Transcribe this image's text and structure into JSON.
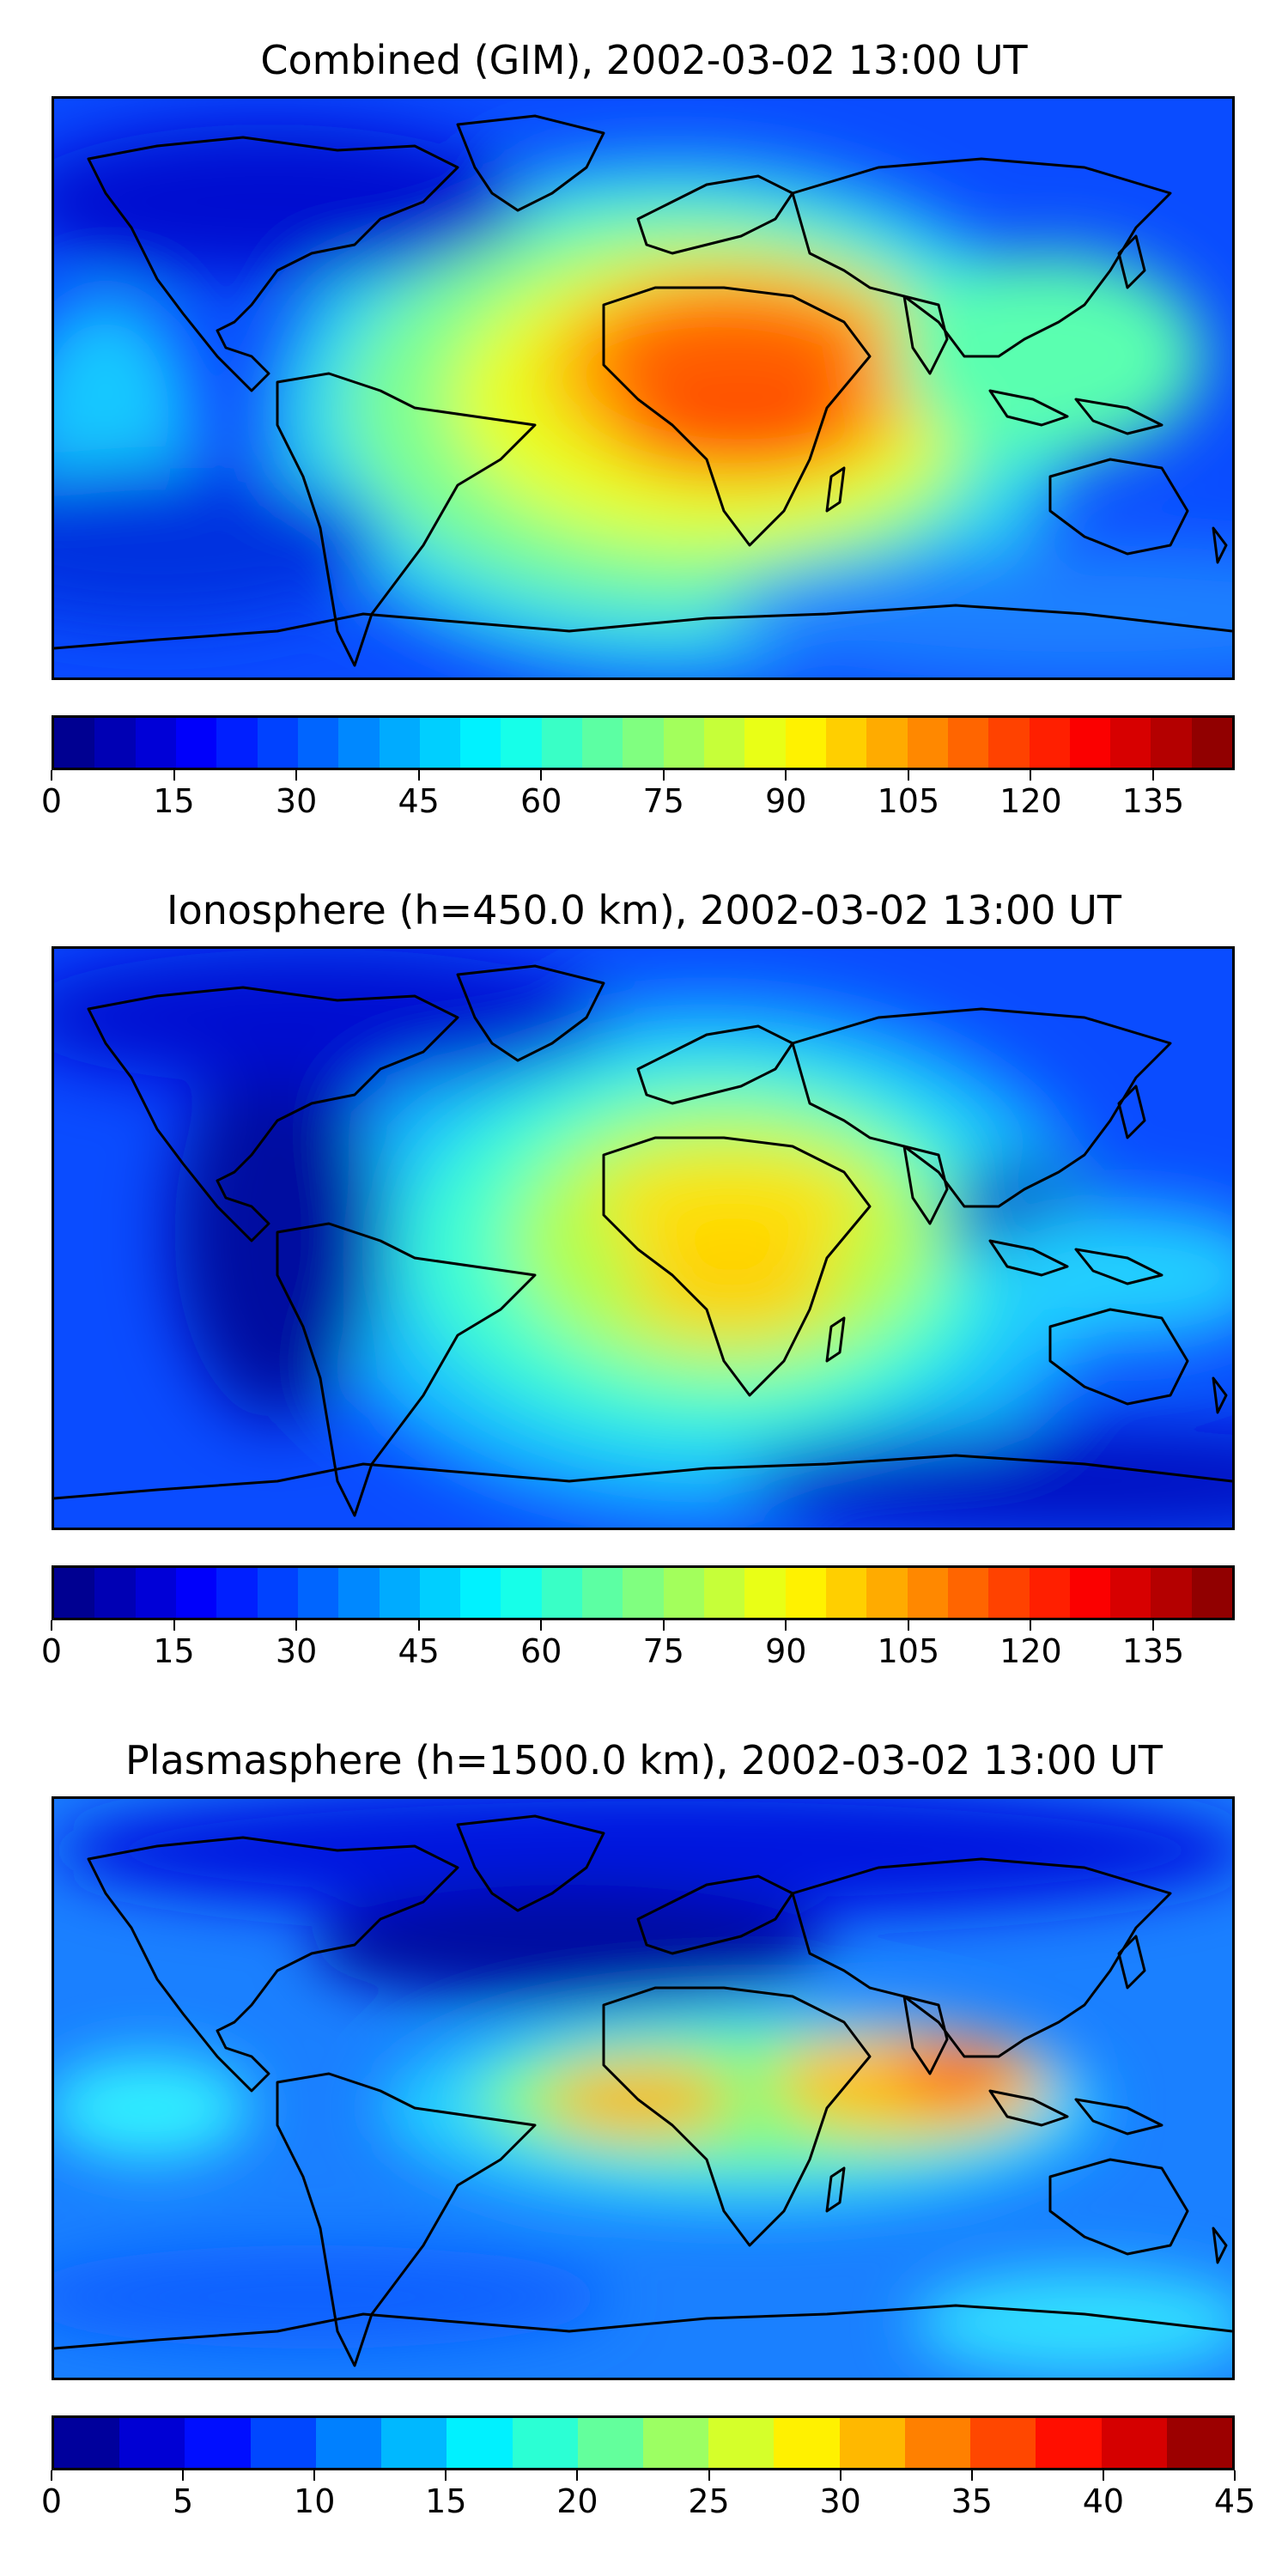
{
  "panels": [
    {
      "title": "Combined (GIM), 2002-03-02 13:00 UT",
      "colorbar": {
        "ticks": [
          "0",
          "15",
          "30",
          "45",
          "60",
          "75",
          "90",
          "105",
          "120",
          "135"
        ],
        "tick_values": [
          0,
          15,
          30,
          45,
          60,
          75,
          90,
          105,
          120,
          135
        ],
        "min": 0,
        "max": 145,
        "levels": 29
      }
    },
    {
      "title": "Ionosphere  (h=450.0 km), 2002-03-02 13:00 UT",
      "colorbar": {
        "ticks": [
          "0",
          "15",
          "30",
          "45",
          "60",
          "75",
          "90",
          "105",
          "120",
          "135"
        ],
        "tick_values": [
          0,
          15,
          30,
          45,
          60,
          75,
          90,
          105,
          120,
          135
        ],
        "min": 0,
        "max": 145,
        "levels": 29
      }
    },
    {
      "title": "Plasmasphere (h=1500.0 km), 2002-03-02 13:00 UT",
      "colorbar": {
        "ticks": [
          "0",
          "5",
          "10",
          "15",
          "20",
          "25",
          "30",
          "35",
          "40",
          "45"
        ],
        "tick_values": [
          0,
          5,
          10,
          15,
          20,
          25,
          30,
          35,
          40,
          45
        ],
        "min": 0,
        "max": 45,
        "levels": 18
      }
    }
  ],
  "colormap": "jet"
}
